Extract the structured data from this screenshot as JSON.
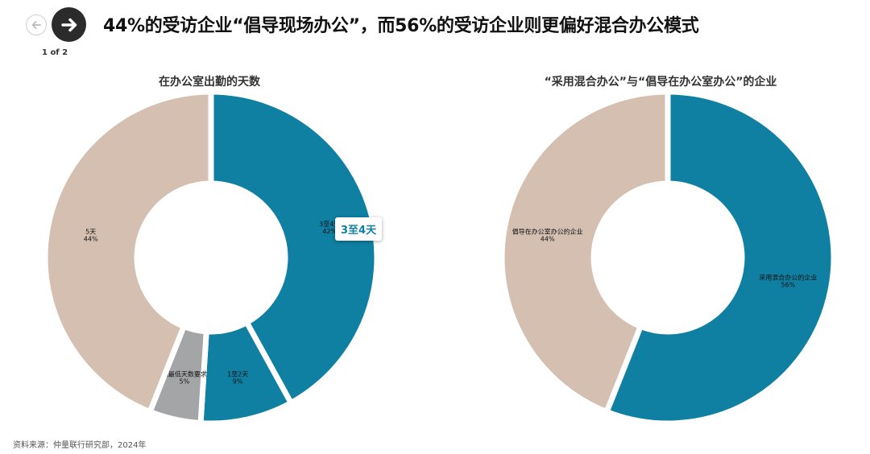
{
  "header": {
    "title": "44%的受访企业“倡导现场办公”，而56%的受访企业则更偏好混合办公模式",
    "pager": "1 of 2"
  },
  "icons": {
    "prev": "arrow-left-icon",
    "next": "arrow-right-icon"
  },
  "colors": {
    "teal": "#0f7fa2",
    "beige": "#d4bfb1",
    "gray": "#a4a5a7"
  },
  "chart_data": [
    {
      "type": "pie",
      "variant": "donut",
      "title": "在办公室出勤的天数",
      "slices": [
        {
          "label": "3至4天",
          "value": 42,
          "value_label": "42%",
          "color": "#0f7fa2"
        },
        {
          "label": "1至2天",
          "value": 9,
          "value_label": "9%",
          "color": "#0f7fa2"
        },
        {
          "label": "无最低天数要求",
          "value": 5,
          "value_label": "5%",
          "color": "#a4a5a7"
        },
        {
          "label": "5天",
          "value": 44,
          "value_label": "44%",
          "color": "#d4bfb1"
        }
      ],
      "tooltip": "3至4天"
    },
    {
      "type": "pie",
      "variant": "donut",
      "title": "“采用混合办公”与“倡导在办公室办公”的企业",
      "slices": [
        {
          "label": "采用混合办公的企业",
          "value": 56,
          "value_label": "56%",
          "color": "#0f7fa2"
        },
        {
          "label": "倡导在办公室办公的企业",
          "value": 44,
          "value_label": "44%",
          "color": "#d4bfb1"
        }
      ]
    }
  ],
  "source": "资料来源：仲量联行研究部，2024年"
}
